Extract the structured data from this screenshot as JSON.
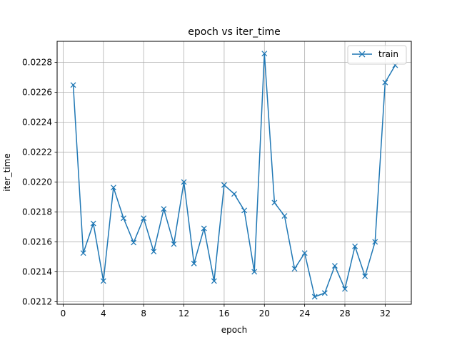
{
  "chart_data": {
    "type": "line",
    "title": "epoch vs iter_time",
    "xlabel": "epoch",
    "ylabel": "iter_time",
    "xlim": [
      -0.6,
      34.6
    ],
    "ylim": [
      0.021183,
      0.02294
    ],
    "x_ticks": [
      0,
      4,
      8,
      12,
      16,
      20,
      24,
      28,
      32
    ],
    "y_ticks": [
      0.0212,
      0.0214,
      0.0216,
      0.0218,
      0.022,
      0.0222,
      0.0224,
      0.0226,
      0.0228
    ],
    "y_tick_labels": [
      "0.0212",
      "0.0214",
      "0.0216",
      "0.0218",
      "0.0220",
      "0.0222",
      "0.0224",
      "0.0226",
      "0.0228"
    ],
    "grid": true,
    "legend_position": "top-right",
    "series": [
      {
        "name": "train",
        "color": "#1f77b4",
        "marker": "x",
        "x": [
          1,
          2,
          3,
          4,
          5,
          6,
          7,
          8,
          9,
          10,
          11,
          12,
          13,
          14,
          15,
          16,
          17,
          18,
          19,
          20,
          21,
          22,
          23,
          24,
          25,
          26,
          27,
          28,
          29,
          30,
          31,
          32,
          33
        ],
        "y": [
          0.022648,
          0.021525,
          0.021723,
          0.021338,
          0.021963,
          0.021758,
          0.021595,
          0.021758,
          0.021535,
          0.02182,
          0.021585,
          0.022,
          0.021455,
          0.02169,
          0.021338,
          0.02198,
          0.02192,
          0.02181,
          0.0214,
          0.022858,
          0.021862,
          0.021773,
          0.02142,
          0.021525,
          0.021233,
          0.021258,
          0.02144,
          0.021285,
          0.02157,
          0.02137,
          0.0216,
          0.022665,
          0.02278
        ]
      }
    ]
  }
}
